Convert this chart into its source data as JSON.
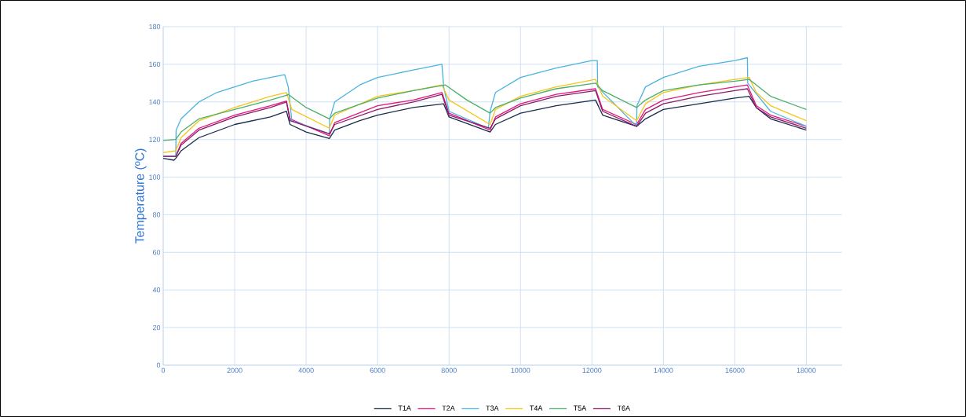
{
  "chart_data": {
    "type": "line",
    "ylabel": "Temperature (ºC)",
    "xlim": [
      0,
      19000
    ],
    "ylim": [
      0,
      180
    ],
    "xticks": [
      0,
      2000,
      4000,
      6000,
      8000,
      10000,
      12000,
      14000,
      16000,
      18000
    ],
    "yticks": [
      0,
      20,
      40,
      60,
      80,
      100,
      120,
      140,
      160,
      180
    ],
    "grid": true,
    "legend": "bottom",
    "marker": "none",
    "line_style": "solid",
    "series": [
      {
        "name": "T1A",
        "color": "#1a2b4c",
        "x": [
          0,
          300,
          350,
          500,
          1000,
          2000,
          3000,
          3450,
          3550,
          4000,
          4650,
          4800,
          5500,
          6000,
          7000,
          7850,
          8000,
          9150,
          9300,
          10000,
          11000,
          12100,
          12300,
          13250,
          13500,
          14000,
          15000,
          16000,
          16400,
          16600,
          17000,
          18000
        ],
        "values": [
          110,
          109,
          110,
          114,
          121,
          128,
          132,
          135,
          128,
          124,
          120.5,
          125,
          130,
          133,
          137,
          139,
          132,
          124,
          128,
          134,
          138,
          141,
          133,
          127,
          131,
          136,
          139,
          142,
          143,
          137,
          131,
          125
        ]
      },
      {
        "name": "T2A",
        "color": "#e0197d",
        "x": [
          0,
          350,
          500,
          1000,
          2000,
          3000,
          3450,
          3550,
          4650,
          4800,
          6000,
          7000,
          7800,
          8000,
          9150,
          9300,
          10000,
          11000,
          12100,
          12300,
          13250,
          13500,
          14000,
          15000,
          16000,
          16350,
          16600,
          17000,
          18000
        ],
        "values": [
          111,
          111,
          118,
          126,
          133,
          138,
          140.5,
          131,
          122,
          129,
          138,
          141,
          145,
          134,
          125,
          132,
          139,
          144,
          147,
          136,
          128,
          136,
          141,
          145,
          148,
          149,
          138,
          133,
          127
        ]
      },
      {
        "name": "T3A",
        "color": "#4ab4e0",
        "x": [
          0,
          350,
          360,
          500,
          1000,
          1500,
          2000,
          2500,
          3000,
          3400,
          3500,
          3600,
          4650,
          4660,
          4800,
          5500,
          6000,
          7000,
          7800,
          7850,
          8000,
          9100,
          9150,
          9300,
          10000,
          11000,
          12000,
          12150,
          12160,
          13250,
          13260,
          13500,
          14000,
          15000,
          16000,
          16350,
          16360,
          17000,
          18000
        ],
        "values": [
          111,
          111,
          125,
          131,
          140,
          145,
          148,
          151,
          153,
          154.5,
          148,
          130,
          123,
          131,
          140,
          149,
          153,
          157,
          160,
          148,
          135,
          126,
          135,
          145,
          153,
          158,
          162,
          162,
          148,
          127,
          138,
          148,
          153,
          159,
          162,
          163.5,
          150,
          135,
          127
        ]
      },
      {
        "name": "T4A",
        "color": "#f5c518",
        "x": [
          0,
          350,
          500,
          1000,
          2000,
          3000,
          3450,
          3600,
          4650,
          4800,
          6000,
          7000,
          7800,
          8000,
          9150,
          9300,
          10000,
          11000,
          12100,
          12300,
          13250,
          13500,
          14000,
          15000,
          16000,
          16400,
          16600,
          17000,
          18000
        ],
        "values": [
          113,
          114,
          121,
          130,
          137,
          143,
          145,
          136,
          126,
          133,
          143,
          146,
          149,
          141,
          128,
          136,
          143,
          148,
          152,
          143,
          130,
          139,
          145,
          149,
          152,
          153,
          145,
          138,
          130
        ]
      },
      {
        "name": "T5A",
        "color": "#4caf6a",
        "x": [
          0,
          350,
          500,
          1000,
          2000,
          3000,
          3450,
          3500,
          4000,
          4650,
          4800,
          6000,
          7000,
          7900,
          8500,
          9150,
          9300,
          10000,
          11000,
          12100,
          12300,
          13250,
          13500,
          14000,
          15000,
          16000,
          16400,
          17000,
          18000
        ],
        "values": [
          119.5,
          120,
          124,
          131,
          136,
          141,
          143.5,
          144,
          137,
          131,
          134,
          142,
          146,
          149,
          141,
          134,
          137,
          142,
          147,
          150,
          146,
          137,
          141,
          146,
          149,
          151,
          152,
          143,
          136
        ]
      },
      {
        "name": "T6A",
        "color": "#8b1a6b",
        "x": [
          0,
          350,
          500,
          1000,
          2000,
          3000,
          3450,
          3550,
          4650,
          4800,
          6000,
          7000,
          7800,
          8000,
          9150,
          9300,
          10000,
          11000,
          12100,
          12300,
          13250,
          13500,
          14000,
          15000,
          16000,
          16350,
          16600,
          17000,
          18000
        ],
        "values": [
          111,
          111,
          117,
          125,
          132,
          137,
          140,
          130,
          123,
          128,
          136,
          140,
          144,
          133,
          126,
          131,
          138,
          143,
          146,
          135,
          127,
          134,
          139,
          143,
          146,
          147,
          137,
          132,
          126
        ]
      }
    ]
  }
}
